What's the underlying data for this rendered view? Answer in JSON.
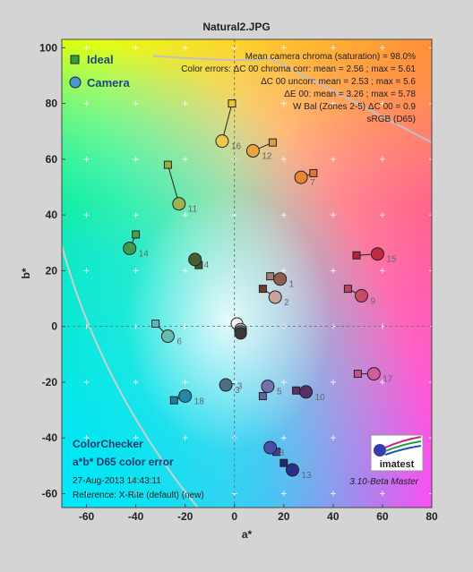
{
  "page": {
    "title": "Natural2.JPG"
  },
  "chart_data": {
    "type": "scatter",
    "title": "Natural2.JPG",
    "xlabel": "a*",
    "ylabel": "b*",
    "xlim": [
      -70,
      80
    ],
    "ylim": [
      -65,
      103
    ],
    "xticks": [
      -60,
      -40,
      -20,
      0,
      20,
      40,
      60,
      80
    ],
    "yticks": [
      -60,
      -40,
      -20,
      0,
      20,
      40,
      60,
      80,
      100
    ],
    "grid": false,
    "legend_position": "top-left",
    "series": [
      {
        "name": "Ideal",
        "marker": "square",
        "points": [
          {
            "id": "1",
            "x": 14.5,
            "y": 18,
            "color": "#a08070"
          },
          {
            "id": "2",
            "x": 11.5,
            "y": 13.5,
            "color": "#6e3d2e"
          },
          {
            "id": "4",
            "x": -14.5,
            "y": 22,
            "color": "#3d5a2c"
          },
          {
            "id": "5",
            "x": 11.5,
            "y": -25,
            "color": "#6262a8"
          },
          {
            "id": "6",
            "x": -32,
            "y": 1,
            "color": "#5fb8b0"
          },
          {
            "id": "7",
            "x": 32,
            "y": 55,
            "color": "#e07830"
          },
          {
            "id": "8",
            "x": 17,
            "y": -45,
            "color": "#3d42a0"
          },
          {
            "id": "9",
            "x": 46,
            "y": 13.5,
            "color": "#c04060"
          },
          {
            "id": "10",
            "x": 25,
            "y": -23,
            "color": "#5a3070"
          },
          {
            "id": "11",
            "x": -27,
            "y": 58,
            "color": "#95b048"
          },
          {
            "id": "12",
            "x": 15.5,
            "y": 66,
            "color": "#e0a030"
          },
          {
            "id": "13",
            "x": 20,
            "y": -49,
            "color": "#1e2878"
          },
          {
            "id": "14",
            "x": -40,
            "y": 33,
            "color": "#45a050"
          },
          {
            "id": "15",
            "x": 49.5,
            "y": 25.5,
            "color": "#b02838"
          },
          {
            "id": "16",
            "x": -1,
            "y": 80,
            "color": "#e8c838"
          },
          {
            "id": "17",
            "x": 50,
            "y": -17,
            "color": "#c8508c"
          },
          {
            "id": "18",
            "x": -24.5,
            "y": -26.5,
            "color": "#1a80a0"
          }
        ]
      },
      {
        "name": "Camera",
        "marker": "circle",
        "points": [
          {
            "id": "1",
            "x": 18.5,
            "y": 17,
            "color": "#905e50"
          },
          {
            "id": "2",
            "x": 16.5,
            "y": 10.5,
            "color": "#c6a69a"
          },
          {
            "id": "3",
            "x": -3.5,
            "y": -21,
            "color": "#4d6e7e"
          },
          {
            "id": "4",
            "x": -16,
            "y": 24,
            "color": "#485e32"
          },
          {
            "id": "5",
            "x": 13.5,
            "y": -21.5,
            "color": "#7272b0"
          },
          {
            "id": "6",
            "x": -27,
            "y": -3.5,
            "color": "#6cbab4"
          },
          {
            "id": "7",
            "x": 27,
            "y": 53.5,
            "color": "#e58830"
          },
          {
            "id": "8",
            "x": 14.5,
            "y": -43.5,
            "color": "#4650a8"
          },
          {
            "id": "9",
            "x": 51.5,
            "y": 11,
            "color": "#c84c68"
          },
          {
            "id": "10",
            "x": 29,
            "y": -23.5,
            "color": "#55306a"
          },
          {
            "id": "11",
            "x": -22.5,
            "y": 44,
            "color": "#9cb450"
          },
          {
            "id": "12",
            "x": 7.5,
            "y": 63,
            "color": "#e8a63a"
          },
          {
            "id": "13",
            "x": 23.5,
            "y": -51.5,
            "color": "#283088"
          },
          {
            "id": "14",
            "x": -42.5,
            "y": 28,
            "color": "#3e9a4c"
          },
          {
            "id": "15",
            "x": 58,
            "y": 26,
            "color": "#c02c40"
          },
          {
            "id": "16",
            "x": -5,
            "y": 66.5,
            "color": "#ecc84a"
          },
          {
            "id": "17",
            "x": 56.5,
            "y": -17,
            "color": "#d45c9a"
          },
          {
            "id": "18",
            "x": -20,
            "y": -25,
            "color": "#2488aa"
          },
          {
            "id": "n1",
            "x": 1,
            "y": 1,
            "color": "#f0f0f0"
          },
          {
            "id": "n2",
            "x": 2.5,
            "y": -1,
            "color": "#c8c8c8"
          },
          {
            "id": "n3",
            "x": 2.5,
            "y": -1.8,
            "color": "#8a8a8a"
          },
          {
            "id": "n4",
            "x": 2.5,
            "y": -2.5,
            "color": "#3a3a3a"
          }
        ]
      }
    ],
    "point_labels": [
      "1",
      "2",
      "3",
      "4",
      "5",
      "6",
      "7",
      "8",
      "9",
      "10",
      "11",
      "12",
      "13",
      "14",
      "15",
      "16",
      "17",
      "18"
    ],
    "annotations": {
      "stats": [
        "Mean camera chroma (saturation) = 98.0%",
        "Color errors: ΔC 00 chroma corr:  mean = 2.56 ;  max = 5.61",
        "ΔC 00 uncorr:  mean = 2.53 ;  max = 5.6",
        "ΔE 00:  mean = 3.26 ;  max = 5.78",
        "W Bal (Zones 2-5) ΔC 00 = 0.9",
        "sRGB (D65)"
      ],
      "chart_name": "ColorChecker",
      "subtitle": "a*b* D65 color error",
      "date": "27-Aug-2013 14:43:11",
      "reference": "Reference: X-Rite (default) (new)",
      "version": "3.10-Beta  Master",
      "logo_text": "imatest"
    }
  }
}
